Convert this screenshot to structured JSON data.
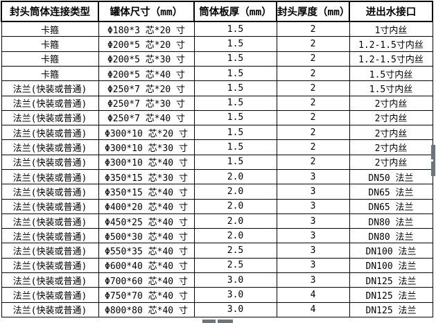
{
  "table": {
    "headers": [
      "封头筒体连接类型",
      "罐体尺寸（mm）",
      "筒体板厚（mm）",
      "封头厚度（mm）",
      "进出水接口"
    ],
    "rows": [
      [
        "卡箍",
        "Φ180*3 芯*20 寸",
        "1.5",
        "2",
        "1寸内丝"
      ],
      [
        "卡箍",
        "Φ200*5 芯*20 寸",
        "1.5",
        "2",
        "1.2-1.5寸内丝"
      ],
      [
        "卡箍",
        "Φ200*5 芯*30 寸",
        "1.5",
        "2",
        "1.2-1.5寸内丝"
      ],
      [
        "卡箍",
        "Φ200*5 芯*40 寸",
        "1.5",
        "2",
        "1.5寸内丝"
      ],
      [
        "法兰(快装或普通)",
        "Φ250*7 芯*20 寸",
        "1.5",
        "2",
        "1.5寸内丝"
      ],
      [
        "法兰(快装或普通)",
        "Φ250*7 芯*30 寸",
        "1.5",
        "2",
        "2寸内丝"
      ],
      [
        "法兰(快装或普通)",
        "Φ250*7 芯*40 寸",
        "1.5",
        "2",
        "2寸内丝"
      ],
      [
        "法兰(快装或普通)",
        "Φ300*10 芯*20 寸",
        "1.5",
        "2",
        "2寸内丝"
      ],
      [
        "法兰(快装或普通)",
        "Φ300*10 芯*30 寸",
        "1.5",
        "2",
        "2寸内丝"
      ],
      [
        "法兰(快装或普通)",
        "Φ300*10 芯*40 寸",
        "1.5",
        "2",
        "2寸内丝"
      ],
      [
        "法兰(快装或普通)",
        "Φ350*15 芯*30 寸",
        "2.0",
        "3",
        "DN50 法兰"
      ],
      [
        "法兰(快装或普通)",
        "Φ350*15 芯*40 寸",
        "2.0",
        "3",
        "DN65 法兰"
      ],
      [
        "法兰(快装或普通)",
        "Φ400*20 芯*40 寸",
        "2.0",
        "3",
        "DN65 法兰"
      ],
      [
        "法兰(快装或普通)",
        "Φ450*25 芯*40 寸",
        "2.0",
        "3",
        "DN80 法兰"
      ],
      [
        "法兰(快装或普通)",
        "Φ500*30 芯*40 寸",
        "2.0",
        "3",
        "DN80 法兰"
      ],
      [
        "法兰(快装或普通)",
        "Φ550*35 芯*40 寸",
        "2.5",
        "3",
        "DN100 法兰"
      ],
      [
        "法兰(快装或普通)",
        "Φ600*40 芯*40 寸",
        "2.5",
        "3",
        "DN100 法兰"
      ],
      [
        "法兰(快装或普通)",
        "Φ700*60 芯*40 寸",
        "3.0",
        "3",
        "DN125 法兰"
      ],
      [
        "法兰(快装或普通)",
        "Φ750*70 芯*40 寸",
        "3.0",
        "4",
        "DN125 法兰"
      ],
      [
        "法兰(快装或普通)",
        "Φ800*80 芯*40 寸",
        "3.0",
        "4",
        "DN125 法兰"
      ]
    ]
  },
  "colors": {
    "border": "#000000",
    "text": "#000000",
    "background": "#ffffff",
    "scrollbar_thumb": "#6e757a"
  }
}
